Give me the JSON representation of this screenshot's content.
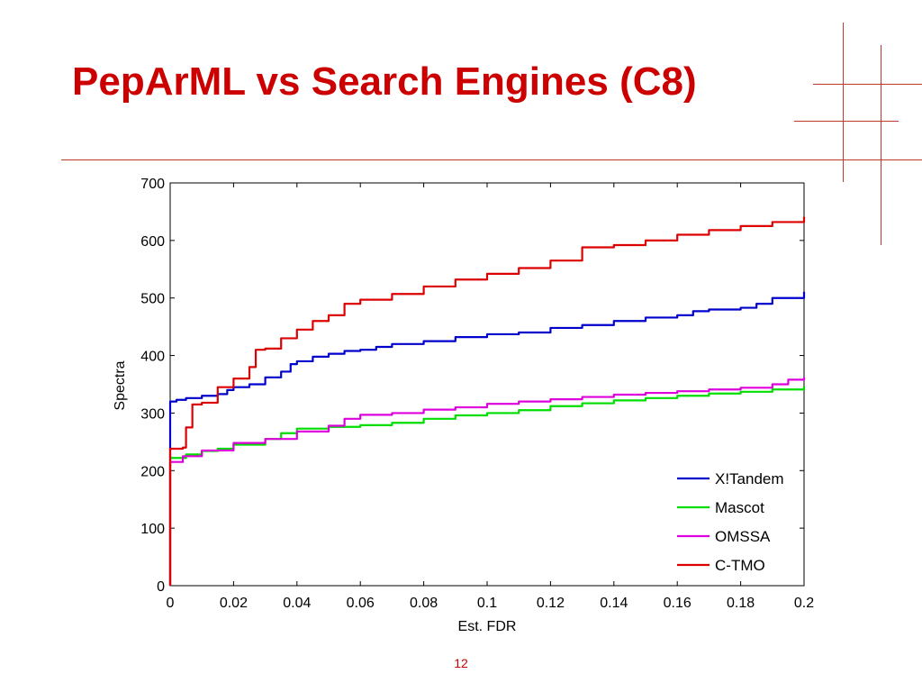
{
  "slide": {
    "title": "PepArML vs Search Engines (C8)",
    "page_number": "12",
    "accent_color": "#cc0000"
  },
  "chart_data": {
    "type": "line",
    "xlabel": "Est. FDR",
    "ylabel": "Spectra",
    "xlim": [
      0,
      0.2
    ],
    "ylim": [
      0,
      700
    ],
    "xticks": [
      0,
      0.02,
      0.04,
      0.06,
      0.08,
      0.1,
      0.12,
      0.14,
      0.16,
      0.18,
      0.2
    ],
    "xtick_labels": [
      "0",
      "0.02",
      "0.04",
      "0.06",
      "0.08",
      "0.1",
      "0.12",
      "0.14",
      "0.16",
      "0.18",
      "0.2"
    ],
    "yticks": [
      0,
      100,
      200,
      300,
      400,
      500,
      600,
      700
    ],
    "ytick_labels": [
      "0",
      "100",
      "200",
      "300",
      "400",
      "500",
      "600",
      "700"
    ],
    "grid": false,
    "legend_position": "bottom-right",
    "series": [
      {
        "name": "X!Tandem",
        "color": "#0000cc",
        "x": [
          0,
          0,
          0.002,
          0.005,
          0.01,
          0.015,
          0.018,
          0.02,
          0.025,
          0.03,
          0.035,
          0.038,
          0.04,
          0.045,
          0.05,
          0.055,
          0.06,
          0.065,
          0.07,
          0.08,
          0.09,
          0.1,
          0.11,
          0.12,
          0.13,
          0.14,
          0.15,
          0.16,
          0.165,
          0.17,
          0.18,
          0.185,
          0.19,
          0.2
        ],
        "y": [
          0,
          320,
          323,
          326,
          330,
          333,
          340,
          345,
          350,
          362,
          372,
          385,
          390,
          398,
          403,
          408,
          410,
          415,
          420,
          425,
          432,
          437,
          440,
          448,
          453,
          460,
          466,
          470,
          477,
          480,
          483,
          490,
          500,
          511
        ]
      },
      {
        "name": "Mascot",
        "color": "#00dd00",
        "x": [
          0,
          0,
          0.005,
          0.01,
          0.015,
          0.02,
          0.03,
          0.035,
          0.04,
          0.05,
          0.06,
          0.07,
          0.08,
          0.09,
          0.1,
          0.11,
          0.12,
          0.13,
          0.14,
          0.15,
          0.16,
          0.17,
          0.18,
          0.19,
          0.2
        ],
        "y": [
          0,
          222,
          228,
          234,
          238,
          245,
          255,
          265,
          273,
          276,
          279,
          283,
          290,
          296,
          300,
          305,
          312,
          317,
          322,
          326,
          330,
          334,
          337,
          341,
          346
        ]
      },
      {
        "name": "OMSSA",
        "color": "#dd00dd",
        "x": [
          0,
          0,
          0.004,
          0.01,
          0.02,
          0.03,
          0.04,
          0.05,
          0.055,
          0.06,
          0.07,
          0.08,
          0.09,
          0.1,
          0.11,
          0.12,
          0.13,
          0.14,
          0.15,
          0.16,
          0.17,
          0.18,
          0.19,
          0.195,
          0.2
        ],
        "y": [
          0,
          215,
          225,
          235,
          248,
          255,
          268,
          278,
          290,
          297,
          300,
          306,
          310,
          316,
          320,
          324,
          328,
          332,
          335,
          338,
          341,
          344,
          350,
          358,
          362
        ]
      },
      {
        "name": "C-TMO",
        "color": "#dd0000",
        "x": [
          0,
          0,
          0.004,
          0.005,
          0.007,
          0.01,
          0.015,
          0.02,
          0.025,
          0.027,
          0.03,
          0.035,
          0.04,
          0.045,
          0.05,
          0.055,
          0.06,
          0.07,
          0.08,
          0.09,
          0.1,
          0.11,
          0.12,
          0.13,
          0.14,
          0.15,
          0.16,
          0.17,
          0.18,
          0.19,
          0.2
        ],
        "y": [
          0,
          238,
          240,
          275,
          315,
          318,
          345,
          360,
          380,
          410,
          412,
          430,
          445,
          460,
          470,
          490,
          497,
          507,
          520,
          532,
          542,
          552,
          565,
          588,
          592,
          600,
          610,
          618,
          625,
          632,
          641
        ]
      }
    ]
  }
}
